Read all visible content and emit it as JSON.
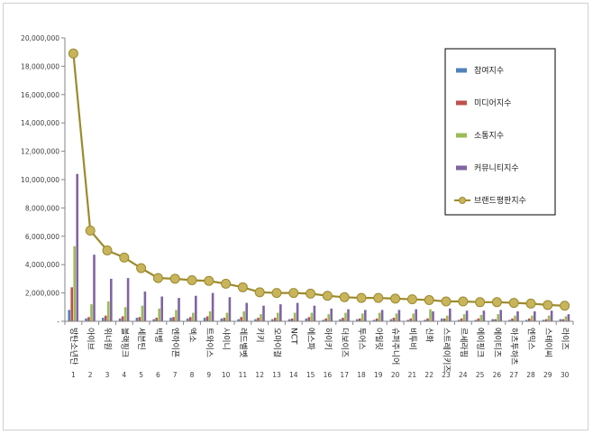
{
  "chart_data": {
    "type": "bar",
    "ylim": [
      0,
      20000000
    ],
    "ytick_step": 2000000,
    "yticks": [
      "-",
      "2,000,000",
      "4,000,000",
      "6,000,000",
      "8,000,000",
      "10,000,000",
      "12,000,000",
      "14,000,000",
      "16,000,000",
      "18,000,000",
      "20,000,000"
    ],
    "grid": false,
    "legend_position": "top-right",
    "categories": [
      "방탄소년단",
      "아이브",
      "위너원",
      "블랙핑크",
      "세븐틴",
      "빅뱅",
      "엔하이픈",
      "엑소",
      "트와이스",
      "샤이니",
      "레드벨벳",
      "키키",
      "오마이걸",
      "NCT",
      "에스파",
      "하이키",
      "더보이즈",
      "투어스",
      "아일릿",
      "슈퍼주니어",
      "비투비",
      "신화",
      "스트레이키즈",
      "르세라핌",
      "에이핑크",
      "에이티즈",
      "하츠투하츠",
      "엔믹스",
      "스테이씨",
      "라이즈"
    ],
    "ranks": [
      "1",
      "2",
      "3",
      "4",
      "5",
      "6",
      "7",
      "8",
      "9",
      "10",
      "11",
      "12",
      "13",
      "14",
      "15",
      "16",
      "17",
      "18",
      "19",
      "20",
      "21",
      "22",
      "23",
      "24",
      "25",
      "26",
      "27",
      "28",
      "29",
      "30"
    ],
    "series": [
      {
        "name": "참여지수",
        "kind": "bar",
        "color": "#4f81bd",
        "values": [
          800000,
          200000,
          250000,
          200000,
          250000,
          150000,
          250000,
          200000,
          250000,
          200000,
          150000,
          150000,
          150000,
          150000,
          200000,
          100000,
          150000,
          150000,
          100000,
          150000,
          100000,
          100000,
          200000,
          100000,
          100000,
          150000,
          100000,
          100000,
          100000,
          150000
        ]
      },
      {
        "name": "미디어지수",
        "kind": "bar",
        "color": "#c0504d",
        "values": [
          2400000,
          300000,
          400000,
          350000,
          300000,
          250000,
          300000,
          300000,
          350000,
          250000,
          300000,
          250000,
          250000,
          200000,
          300000,
          200000,
          250000,
          200000,
          200000,
          250000,
          200000,
          200000,
          200000,
          200000,
          200000,
          150000,
          200000,
          200000,
          150000,
          150000
        ]
      },
      {
        "name": "소통지수",
        "kind": "bar",
        "color": "#9bbb59",
        "values": [
          5300000,
          1200000,
          1400000,
          1000000,
          1100000,
          900000,
          800000,
          600000,
          700000,
          600000,
          700000,
          500000,
          600000,
          600000,
          600000,
          500000,
          600000,
          550000,
          600000,
          550000,
          550000,
          850000,
          400000,
          500000,
          450000,
          500000,
          400000,
          400000,
          400000,
          350000
        ]
      },
      {
        "name": "커뮤니티지수",
        "kind": "bar",
        "color": "#8064a2",
        "values": [
          10400000,
          4700000,
          3000000,
          3050000,
          2100000,
          1750000,
          1650000,
          1800000,
          2000000,
          1700000,
          1300000,
          1100000,
          1200000,
          1300000,
          1100000,
          900000,
          850000,
          800000,
          800000,
          800000,
          850000,
          700000,
          900000,
          750000,
          750000,
          800000,
          700000,
          700000,
          750000,
          500000
        ]
      },
      {
        "name": "브랜드평판지수",
        "kind": "line",
        "color": "#9c8a2e",
        "marker_color": "#c8b45a",
        "values": [
          18900000,
          6400000,
          5000000,
          4500000,
          3750000,
          3050000,
          3000000,
          2900000,
          2850000,
          2650000,
          2400000,
          2050000,
          2000000,
          2000000,
          1950000,
          1800000,
          1700000,
          1650000,
          1650000,
          1600000,
          1550000,
          1500000,
          1400000,
          1400000,
          1350000,
          1350000,
          1300000,
          1250000,
          1150000,
          1100000
        ]
      }
    ]
  }
}
